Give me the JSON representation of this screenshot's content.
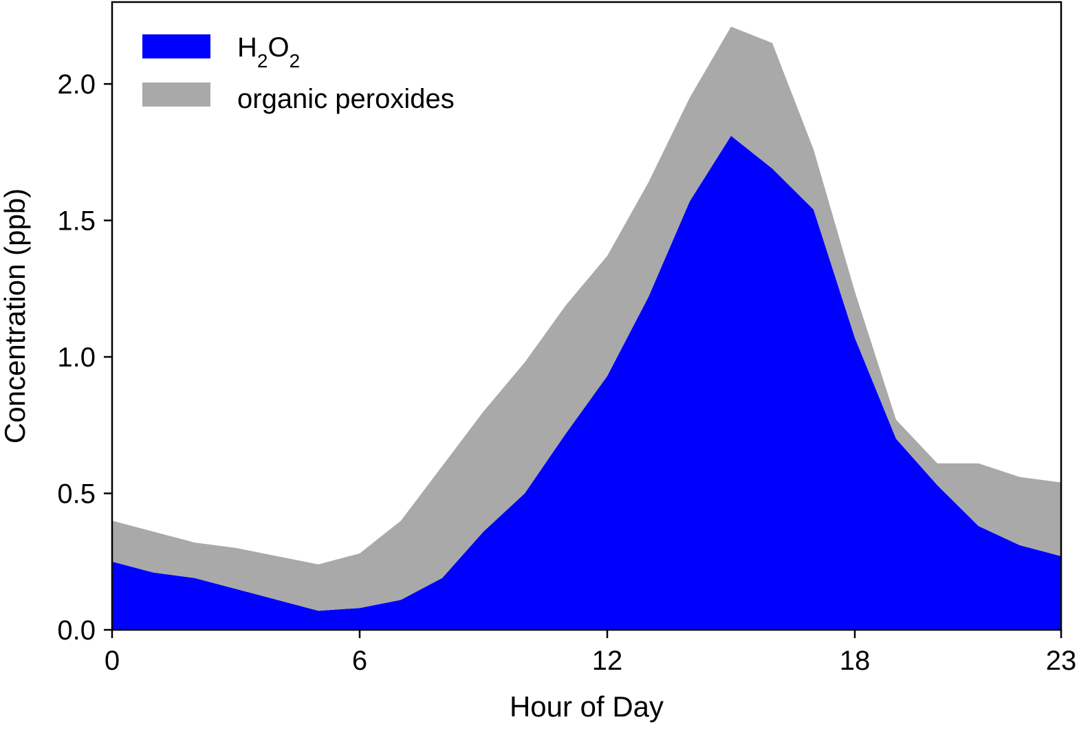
{
  "chart_data": {
    "type": "area",
    "stacked": true,
    "xlabel": "Hour of Day",
    "ylabel": "Concentration (ppb)",
    "xlim": [
      0,
      23
    ],
    "ylim": [
      0,
      2.3
    ],
    "xticks": [
      0,
      6,
      12,
      18,
      23
    ],
    "yticks": [
      0.0,
      0.5,
      1.0,
      1.5,
      2.0
    ],
    "ytick_labels": [
      "0.0",
      "0.5",
      "1.0",
      "1.5",
      "2.0"
    ],
    "grid": false,
    "legend": {
      "position": "top-left",
      "entries": [
        {
          "label_main": "H",
          "sub1": "2",
          "label_mid": "O",
          "sub2": "2",
          "color": "#0000ff"
        },
        {
          "label": "organic peroxides",
          "color": "#a9a9a9"
        }
      ]
    },
    "x": [
      0,
      1,
      2,
      3,
      4,
      5,
      6,
      7,
      8,
      9,
      10,
      11,
      12,
      13,
      14,
      15,
      16,
      17,
      18,
      19,
      20,
      21,
      22,
      23
    ],
    "series": [
      {
        "name": "H2O2",
        "color": "#0000ff",
        "values": [
          0.25,
          0.21,
          0.19,
          0.15,
          0.11,
          0.07,
          0.08,
          0.11,
          0.19,
          0.36,
          0.5,
          0.72,
          0.93,
          1.22,
          1.57,
          1.81,
          1.69,
          1.54,
          1.07,
          0.7,
          0.53,
          0.38,
          0.31,
          0.27
        ]
      },
      {
        "name": "organic peroxides",
        "color": "#a9a9a9",
        "values": [
          0.15,
          0.15,
          0.13,
          0.15,
          0.16,
          0.17,
          0.2,
          0.29,
          0.41,
          0.44,
          0.48,
          0.47,
          0.44,
          0.42,
          0.38,
          0.4,
          0.46,
          0.22,
          0.17,
          0.07,
          0.08,
          0.23,
          0.25,
          0.27
        ]
      }
    ]
  }
}
